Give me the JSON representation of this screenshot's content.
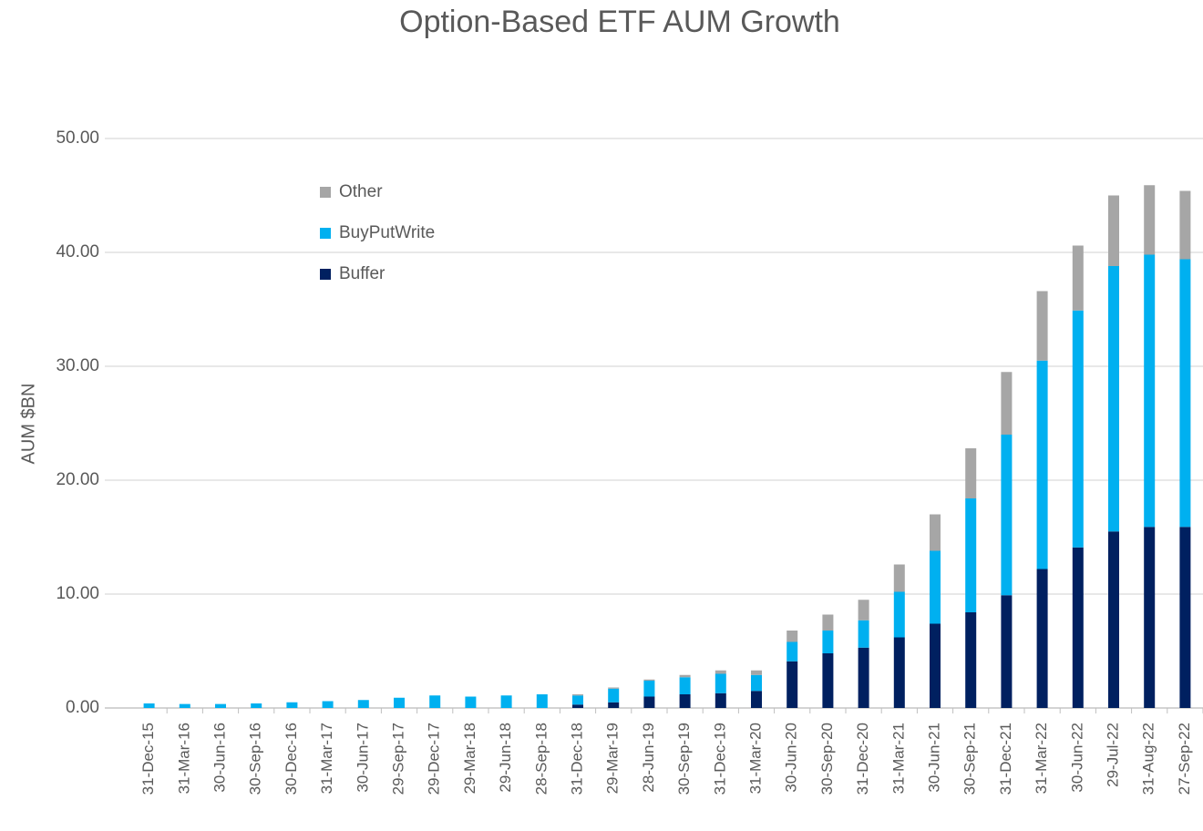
{
  "chart_data": {
    "type": "stacked_bar",
    "title": "Option-Based ETF AUM Growth",
    "y_label": "AUM $BN",
    "categories": [
      "31-Dec-15",
      "31-Mar-16",
      "30-Jun-16",
      "30-Sep-16",
      "30-Dec-16",
      "31-Mar-17",
      "30-Jun-17",
      "29-Sep-17",
      "29-Dec-17",
      "29-Mar-18",
      "29-Jun-18",
      "28-Sep-18",
      "31-Dec-18",
      "29-Mar-19",
      "28-Jun-19",
      "30-Sep-19",
      "31-Dec-19",
      "31-Mar-20",
      "30-Jun-20",
      "30-Sep-20",
      "31-Dec-20",
      "31-Mar-21",
      "30-Jun-21",
      "30-Sep-21",
      "31-Dec-21",
      "31-Mar-22",
      "30-Jun-22",
      "29-Jul-22",
      "31-Aug-22",
      "27-Sep-22"
    ],
    "series": [
      {
        "name": "Buffer",
        "color": "#002060",
        "values": [
          0,
          0,
          0,
          0,
          0,
          0,
          0,
          0,
          0,
          0,
          0,
          0,
          0.3,
          0.5,
          1.0,
          1.2,
          1.3,
          1.5,
          4.1,
          4.8,
          5.3,
          6.2,
          7.4,
          8.4,
          9.9,
          12.2,
          14.1,
          15.5,
          15.9,
          15.9
        ]
      },
      {
        "name": "BuyPutWrite",
        "color": "#00b0f0",
        "values": [
          0.4,
          0.35,
          0.35,
          0.4,
          0.5,
          0.6,
          0.7,
          0.9,
          1.1,
          1.0,
          1.1,
          1.2,
          0.8,
          1.2,
          1.4,
          1.5,
          1.7,
          1.4,
          1.7,
          2.0,
          2.4,
          4.0,
          6.4,
          10.0,
          14.1,
          18.3,
          20.8,
          23.3,
          23.9,
          23.5
        ]
      },
      {
        "name": "Other",
        "color": "#a6a6a6",
        "values": [
          0,
          0,
          0,
          0,
          0,
          0,
          0,
          0,
          0,
          0,
          0,
          0,
          0.1,
          0.1,
          0.1,
          0.2,
          0.3,
          0.4,
          1.0,
          1.4,
          1.8,
          2.4,
          3.2,
          4.4,
          5.5,
          6.1,
          5.7,
          6.2,
          6.1,
          6.0
        ]
      }
    ],
    "ylim": [
      0,
      50
    ],
    "yticks": [
      {
        "value": 0,
        "label": "0.00"
      },
      {
        "value": 10,
        "label": "10.00"
      },
      {
        "value": 20,
        "label": "20.00"
      },
      {
        "value": 30,
        "label": "30.00"
      },
      {
        "value": 40,
        "label": "40.00"
      },
      {
        "value": 50,
        "label": "50.00"
      }
    ],
    "grid": true,
    "legend": "upper left"
  }
}
